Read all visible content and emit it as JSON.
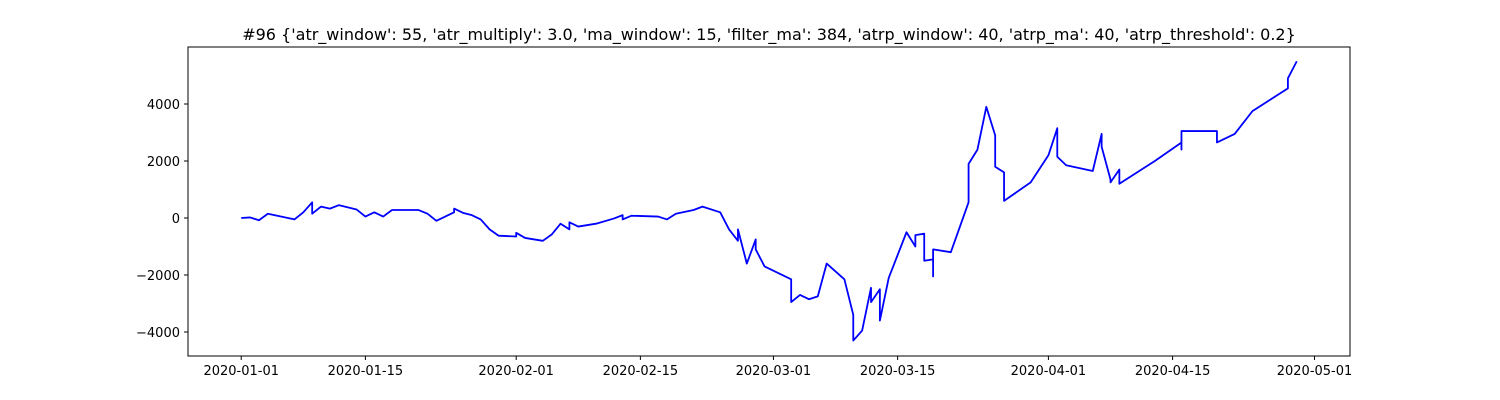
{
  "chart_data": {
    "type": "line",
    "title": "#96 {'atr_window': 55, 'atr_multiply': 3.0, 'ma_window': 15, 'filter_ma': 384, 'atrp_window': 40, 'atrp_ma': 40, 'atrp_threshold': 0.2}",
    "x": [
      "2020-01-01",
      "2020-01-02",
      "2020-01-03",
      "2020-01-04",
      "2020-01-07",
      "2020-01-08",
      "2020-01-09",
      "2020-01-09",
      "2020-01-10",
      "2020-01-11",
      "2020-01-12",
      "2020-01-14",
      "2020-01-15",
      "2020-01-16",
      "2020-01-17",
      "2020-01-18",
      "2020-01-21",
      "2020-01-22",
      "2020-01-23",
      "2020-01-24",
      "2020-01-25",
      "2020-01-25",
      "2020-01-26",
      "2020-01-27",
      "2020-01-28",
      "2020-01-29",
      "2020-01-30",
      "2020-02-01",
      "2020-02-01",
      "2020-02-02",
      "2020-02-04",
      "2020-02-05",
      "2020-02-06",
      "2020-02-07",
      "2020-02-07",
      "2020-02-08",
      "2020-02-10",
      "2020-02-12",
      "2020-02-13",
      "2020-02-13",
      "2020-02-14",
      "2020-02-17",
      "2020-02-18",
      "2020-02-19",
      "2020-02-21",
      "2020-02-22",
      "2020-02-24",
      "2020-02-25",
      "2020-02-26",
      "2020-02-26",
      "2020-02-27",
      "2020-02-28",
      "2020-02-28",
      "2020-02-29",
      "2020-03-03",
      "2020-03-03",
      "2020-03-04",
      "2020-03-05",
      "2020-03-06",
      "2020-03-07",
      "2020-03-09",
      "2020-03-10",
      "2020-03-10",
      "2020-03-11",
      "2020-03-12",
      "2020-03-12",
      "2020-03-13",
      "2020-03-13",
      "2020-03-14",
      "2020-03-16",
      "2020-03-17",
      "2020-03-17",
      "2020-03-18",
      "2020-03-18",
      "2020-03-19",
      "2020-03-19",
      "2020-03-19",
      "2020-03-21",
      "2020-03-23",
      "2020-03-23",
      "2020-03-24",
      "2020-03-25",
      "2020-03-26",
      "2020-03-26",
      "2020-03-27",
      "2020-03-27",
      "2020-03-30",
      "2020-04-01",
      "2020-04-02",
      "2020-04-02",
      "2020-04-03",
      "2020-04-06",
      "2020-04-07",
      "2020-04-07",
      "2020-04-08",
      "2020-04-08",
      "2020-04-09",
      "2020-04-09",
      "2020-04-13",
      "2020-04-16",
      "2020-04-16",
      "2020-04-16",
      "2020-04-20",
      "2020-04-20",
      "2020-04-22",
      "2020-04-24",
      "2020-04-28",
      "2020-04-28",
      "2020-04-29"
    ],
    "series": [
      {
        "color": "#0000ff",
        "values": [
          0,
          20,
          -80,
          150,
          -50,
          200,
          550,
          150,
          400,
          330,
          450,
          300,
          50,
          200,
          50,
          280,
          280,
          150,
          -100,
          50,
          200,
          330,
          180,
          100,
          -50,
          -400,
          -620,
          -650,
          -520,
          -700,
          -800,
          -580,
          -200,
          -400,
          -150,
          -300,
          -200,
          -20,
          100,
          -50,
          80,
          50,
          -50,
          150,
          280,
          400,
          200,
          -400,
          -800,
          -400,
          -1600,
          -750,
          -1100,
          -1700,
          -2150,
          -2950,
          -2700,
          -2850,
          -2750,
          -1600,
          -2150,
          -3400,
          -4300,
          -3950,
          -2450,
          -2950,
          -2500,
          -3600,
          -2100,
          -500,
          -1000,
          -600,
          -550,
          -1500,
          -1450,
          -2050,
          -1100,
          -1200,
          550,
          1900,
          2400,
          3900,
          2900,
          1800,
          1600,
          600,
          1250,
          2200,
          3150,
          2150,
          1850,
          1650,
          2950,
          2500,
          1350,
          1250,
          1700,
          1200,
          2000,
          2650,
          2400,
          3050,
          3050,
          2650,
          2950,
          3750,
          4550,
          4900,
          5500
        ]
      }
    ],
    "xlim": [
      "2019-12-26",
      "2020-05-05"
    ],
    "xticks": [
      "2020-01-01",
      "2020-01-15",
      "2020-02-01",
      "2020-02-15",
      "2020-03-01",
      "2020-03-15",
      "2020-04-01",
      "2020-04-15",
      "2020-05-01"
    ],
    "ylim": [
      -4842,
      6000
    ],
    "yticks": [
      {
        "value": -4000,
        "label": "−4000"
      },
      {
        "value": -2000,
        "label": "−2000"
      },
      0,
      2000,
      4000
    ],
    "grid": false
  }
}
